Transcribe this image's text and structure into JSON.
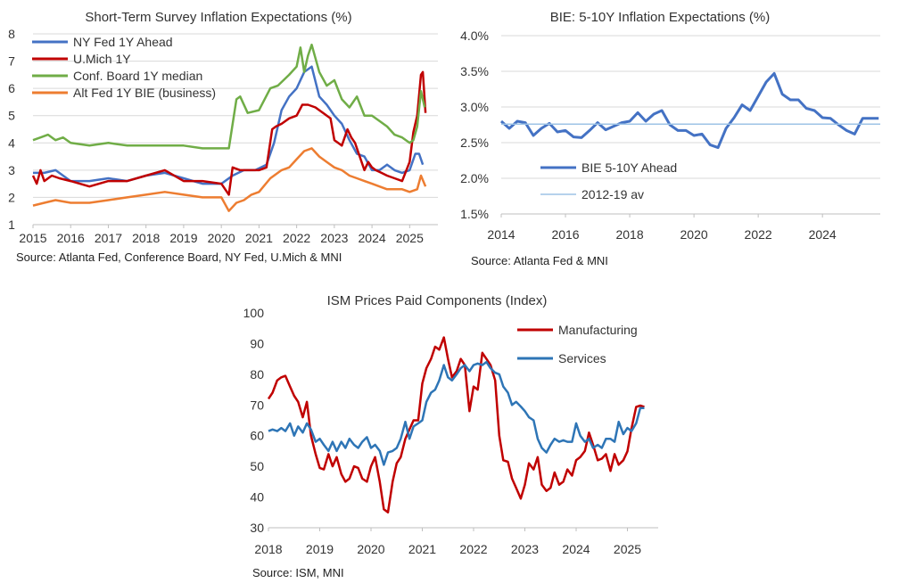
{
  "charts": {
    "colors": {
      "nyfed": "#4472C4",
      "umich": "#C00000",
      "conf": "#70AD47",
      "altfed": "#ED7D31",
      "bie": "#4472C4",
      "bie_avg": "#9DC3E6",
      "mfg": "#C00000",
      "svc": "#2E75B6"
    }
  },
  "chart_data": [
    {
      "type": "line",
      "title": "Short-Term Survey Inflation Expectations (%)",
      "source": "Source: Atlanta Fed, Conference Board, NY Fed, U.Mich & MNI",
      "xlabel": "",
      "ylabel": "",
      "xlim": [
        2015,
        2025.75
      ],
      "ylim": [
        1,
        8
      ],
      "xticks": [
        2015,
        2016,
        2017,
        2018,
        2019,
        2020,
        2021,
        2022,
        2023,
        2024,
        2025
      ],
      "yticks": [
        1,
        2,
        3,
        4,
        5,
        6,
        7,
        8
      ],
      "legend_position": "top-left",
      "series": [
        {
          "name": "NY Fed 1Y Ahead",
          "color_key": "nyfed",
          "x": [
            2015.0,
            2015.3,
            2015.6,
            2016.0,
            2016.5,
            2017.0,
            2017.5,
            2018.0,
            2018.5,
            2019.0,
            2019.5,
            2020.0,
            2020.3,
            2020.6,
            2020.9,
            2021.2,
            2021.4,
            2021.6,
            2021.8,
            2022.0,
            2022.2,
            2022.4,
            2022.6,
            2022.8,
            2023.0,
            2023.2,
            2023.4,
            2023.6,
            2023.8,
            2024.0,
            2024.2,
            2024.4,
            2024.6,
            2024.8,
            2025.0,
            2025.15,
            2025.25,
            2025.35
          ],
          "values": [
            2.9,
            2.9,
            3.0,
            2.6,
            2.6,
            2.7,
            2.6,
            2.8,
            2.9,
            2.7,
            2.5,
            2.5,
            2.8,
            3.0,
            3.0,
            3.2,
            4.0,
            5.2,
            5.7,
            6.0,
            6.6,
            6.8,
            5.7,
            5.4,
            5.0,
            4.7,
            4.1,
            3.6,
            3.5,
            3.0,
            3.0,
            3.2,
            3.0,
            2.9,
            3.0,
            3.6,
            3.6,
            3.2
          ]
        },
        {
          "name": "U.Mich 1Y",
          "color_key": "umich",
          "x": [
            2015.0,
            2015.1,
            2015.2,
            2015.3,
            2015.5,
            2015.7,
            2016.0,
            2016.5,
            2017.0,
            2017.5,
            2018.0,
            2018.5,
            2019.0,
            2019.5,
            2020.0,
            2020.2,
            2020.3,
            2020.5,
            2020.8,
            2021.0,
            2021.2,
            2021.35,
            2021.45,
            2021.6,
            2021.8,
            2022.0,
            2022.15,
            2022.3,
            2022.5,
            2022.6,
            2022.8,
            2022.9,
            2023.0,
            2023.1,
            2023.2,
            2023.35,
            2023.45,
            2023.55,
            2023.7,
            2023.8,
            2023.9,
            2024.0,
            2024.1,
            2024.25,
            2024.4,
            2024.6,
            2024.8,
            2025.0,
            2025.1,
            2025.2,
            2025.3,
            2025.35,
            2025.42
          ],
          "values": [
            2.8,
            2.5,
            3.0,
            2.6,
            2.8,
            2.7,
            2.6,
            2.4,
            2.6,
            2.6,
            2.8,
            3.0,
            2.6,
            2.6,
            2.5,
            2.1,
            3.1,
            3.0,
            3.0,
            3.0,
            3.1,
            4.5,
            4.6,
            4.7,
            4.9,
            5.0,
            5.4,
            5.4,
            5.3,
            5.2,
            5.0,
            4.9,
            4.1,
            4.0,
            3.9,
            4.5,
            4.2,
            4.0,
            3.4,
            3.0,
            3.3,
            3.1,
            3.0,
            2.9,
            2.8,
            2.7,
            2.6,
            3.3,
            4.4,
            5.0,
            6.5,
            6.6,
            5.1
          ]
        },
        {
          "name": "Conf. Board 1Y median",
          "color_key": "conf",
          "x": [
            2015.0,
            2015.2,
            2015.4,
            2015.6,
            2015.8,
            2016.0,
            2016.5,
            2017.0,
            2017.5,
            2018.0,
            2018.5,
            2019.0,
            2019.5,
            2019.8,
            2020.0,
            2020.2,
            2020.4,
            2020.5,
            2020.7,
            2021.0,
            2021.3,
            2021.5,
            2021.8,
            2022.0,
            2022.1,
            2022.2,
            2022.3,
            2022.4,
            2022.6,
            2022.8,
            2023.0,
            2023.2,
            2023.4,
            2023.6,
            2023.8,
            2024.0,
            2024.2,
            2024.4,
            2024.6,
            2024.8,
            2025.0,
            2025.1,
            2025.2,
            2025.3,
            2025.4
          ],
          "values": [
            4.1,
            4.2,
            4.3,
            4.1,
            4.2,
            4.0,
            3.9,
            4.0,
            3.9,
            3.9,
            3.9,
            3.9,
            3.8,
            3.8,
            3.8,
            3.8,
            5.6,
            5.7,
            5.1,
            5.2,
            6.0,
            6.1,
            6.5,
            6.8,
            7.5,
            6.6,
            7.2,
            7.6,
            6.6,
            6.1,
            6.3,
            5.6,
            5.3,
            5.7,
            5.0,
            5.0,
            4.8,
            4.6,
            4.3,
            4.2,
            4.0,
            4.1,
            4.6,
            5.9,
            5.3
          ]
        },
        {
          "name": "Alt Fed 1Y BIE (business)",
          "color_key": "altfed",
          "x": [
            2015.0,
            2015.3,
            2015.6,
            2016.0,
            2016.5,
            2017.0,
            2017.5,
            2018.0,
            2018.5,
            2019.0,
            2019.5,
            2019.8,
            2020.0,
            2020.2,
            2020.4,
            2020.6,
            2020.8,
            2021.0,
            2021.3,
            2021.6,
            2021.8,
            2022.0,
            2022.2,
            2022.4,
            2022.6,
            2022.8,
            2023.0,
            2023.2,
            2023.4,
            2023.6,
            2023.8,
            2024.0,
            2024.2,
            2024.4,
            2024.6,
            2024.8,
            2025.0,
            2025.2,
            2025.3,
            2025.42
          ],
          "values": [
            1.7,
            1.8,
            1.9,
            1.8,
            1.8,
            1.9,
            2.0,
            2.1,
            2.2,
            2.1,
            2.0,
            2.0,
            2.0,
            1.5,
            1.8,
            1.9,
            2.1,
            2.2,
            2.7,
            3.0,
            3.1,
            3.4,
            3.7,
            3.8,
            3.5,
            3.3,
            3.1,
            3.0,
            2.8,
            2.7,
            2.6,
            2.5,
            2.4,
            2.3,
            2.3,
            2.3,
            2.2,
            2.3,
            2.8,
            2.4
          ]
        }
      ]
    },
    {
      "type": "line",
      "title": "BIE: 5-10Y Inflation Expectations (%)",
      "source": "Source: Atlanta Fed & MNI",
      "xlabel": "",
      "ylabel": "",
      "xlim": [
        2014,
        2025.8
      ],
      "ylim": [
        1.5,
        4.0
      ],
      "xticks": [
        2014,
        2016,
        2018,
        2020,
        2022,
        2024
      ],
      "yticks": [
        1.5,
        2.0,
        2.5,
        3.0,
        3.5,
        4.0
      ],
      "yticklabels": [
        "1.5%",
        "2.0%",
        "2.5%",
        "3.0%",
        "3.5%",
        "4.0%"
      ],
      "legend_position": "bottom-left",
      "series": [
        {
          "name": "BIE 5-10Y Ahead",
          "color_key": "bie",
          "x": [
            2014.0,
            2014.25,
            2014.5,
            2014.75,
            2015.0,
            2015.25,
            2015.5,
            2015.75,
            2016.0,
            2016.25,
            2016.5,
            2016.75,
            2017.0,
            2017.25,
            2017.5,
            2017.75,
            2018.0,
            2018.25,
            2018.5,
            2018.75,
            2019.0,
            2019.25,
            2019.5,
            2019.75,
            2020.0,
            2020.25,
            2020.5,
            2020.75,
            2021.0,
            2021.25,
            2021.5,
            2021.75,
            2022.0,
            2022.25,
            2022.5,
            2022.75,
            2023.0,
            2023.25,
            2023.5,
            2023.75,
            2024.0,
            2024.25,
            2024.5,
            2024.75,
            2025.0,
            2025.25,
            2025.5,
            2025.75
          ],
          "values": [
            2.8,
            2.7,
            2.8,
            2.78,
            2.6,
            2.7,
            2.77,
            2.65,
            2.67,
            2.58,
            2.57,
            2.67,
            2.78,
            2.68,
            2.73,
            2.78,
            2.8,
            2.92,
            2.8,
            2.9,
            2.95,
            2.75,
            2.67,
            2.67,
            2.6,
            2.62,
            2.47,
            2.43,
            2.7,
            2.85,
            3.03,
            2.95,
            3.15,
            3.35,
            3.47,
            3.18,
            3.1,
            3.1,
            2.98,
            2.95,
            2.85,
            2.84,
            2.75,
            2.67,
            2.62,
            2.84,
            2.84,
            2.84
          ]
        },
        {
          "name": "2012-19 av",
          "color_key": "bie_avg",
          "x": [
            2014,
            2025.8
          ],
          "values": [
            2.76,
            2.76
          ]
        }
      ]
    },
    {
      "type": "line",
      "title": "ISM Prices Paid Components (Index)",
      "source": "Source: ISM, MNI",
      "xlabel": "",
      "ylabel": "",
      "xlim": [
        2018,
        2025.6
      ],
      "ylim": [
        30,
        100
      ],
      "xticks": [
        2018,
        2019,
        2020,
        2021,
        2022,
        2023,
        2024,
        2025
      ],
      "yticks": [
        30,
        40,
        50,
        60,
        70,
        80,
        90,
        100
      ],
      "legend_position": "top-right",
      "series": [
        {
          "name": "Manufacturing",
          "color_key": "mfg",
          "x": [
            2018.0,
            2018.08,
            2018.17,
            2018.25,
            2018.33,
            2018.42,
            2018.5,
            2018.58,
            2018.67,
            2018.75,
            2018.83,
            2018.92,
            2019.0,
            2019.08,
            2019.17,
            2019.25,
            2019.33,
            2019.42,
            2019.5,
            2019.58,
            2019.67,
            2019.75,
            2019.83,
            2019.92,
            2020.0,
            2020.08,
            2020.17,
            2020.25,
            2020.33,
            2020.42,
            2020.5,
            2020.58,
            2020.67,
            2020.75,
            2020.83,
            2020.92,
            2021.0,
            2021.08,
            2021.17,
            2021.25,
            2021.33,
            2021.42,
            2021.5,
            2021.58,
            2021.67,
            2021.75,
            2021.83,
            2021.92,
            2022.0,
            2022.08,
            2022.17,
            2022.25,
            2022.33,
            2022.42,
            2022.5,
            2022.58,
            2022.67,
            2022.75,
            2022.83,
            2022.92,
            2023.0,
            2023.08,
            2023.17,
            2023.25,
            2023.33,
            2023.42,
            2023.5,
            2023.58,
            2023.67,
            2023.75,
            2023.83,
            2023.92,
            2024.0,
            2024.08,
            2024.17,
            2024.25,
            2024.33,
            2024.42,
            2024.5,
            2024.58,
            2024.67,
            2024.75,
            2024.83,
            2024.92,
            2025.0,
            2025.08,
            2025.17,
            2025.25,
            2025.33
          ],
          "values": [
            72,
            74,
            78,
            79,
            79.5,
            76,
            73,
            71,
            66,
            71,
            60,
            54,
            49.5,
            49,
            54,
            50,
            53,
            47.5,
            45,
            46,
            50,
            49.5,
            46,
            45,
            50,
            53,
            45,
            36,
            35,
            45,
            51,
            53,
            59,
            62,
            65,
            65,
            77,
            82,
            85,
            89,
            88,
            92,
            85,
            79,
            81,
            85,
            83,
            68,
            76,
            75,
            87,
            85,
            83,
            78,
            60,
            52,
            51.5,
            46,
            43,
            39.5,
            44,
            51,
            49,
            53,
            44,
            42,
            43,
            48,
            44,
            45,
            49,
            47,
            52,
            53,
            55,
            61,
            57,
            52,
            52.5,
            54,
            48.5,
            54,
            50.5,
            52,
            54.9,
            62.4,
            69.4,
            69.8,
            69.4
          ]
        },
        {
          "name": "Services",
          "color_key": "svc",
          "x": [
            2018.0,
            2018.08,
            2018.17,
            2018.25,
            2018.33,
            2018.42,
            2018.5,
            2018.58,
            2018.67,
            2018.75,
            2018.83,
            2018.92,
            2019.0,
            2019.08,
            2019.17,
            2019.25,
            2019.33,
            2019.42,
            2019.5,
            2019.58,
            2019.67,
            2019.75,
            2019.83,
            2019.92,
            2020.0,
            2020.08,
            2020.17,
            2020.25,
            2020.33,
            2020.42,
            2020.5,
            2020.58,
            2020.67,
            2020.75,
            2020.83,
            2020.92,
            2021.0,
            2021.08,
            2021.17,
            2021.25,
            2021.33,
            2021.42,
            2021.5,
            2021.58,
            2021.67,
            2021.75,
            2021.83,
            2021.92,
            2022.0,
            2022.08,
            2022.17,
            2022.25,
            2022.33,
            2022.42,
            2022.5,
            2022.58,
            2022.67,
            2022.75,
            2022.83,
            2022.92,
            2023.0,
            2023.08,
            2023.17,
            2023.25,
            2023.33,
            2023.42,
            2023.5,
            2023.58,
            2023.67,
            2023.75,
            2023.83,
            2023.92,
            2024.0,
            2024.08,
            2024.17,
            2024.25,
            2024.33,
            2024.42,
            2024.5,
            2024.58,
            2024.67,
            2024.75,
            2024.83,
            2024.92,
            2025.0,
            2025.08,
            2025.17,
            2025.25,
            2025.33
          ],
          "values": [
            61.5,
            62,
            61.5,
            62.5,
            61.5,
            64,
            60,
            63,
            61,
            64,
            62,
            58,
            59,
            57,
            55,
            58,
            55,
            58,
            56,
            59,
            57,
            56,
            58,
            59.5,
            56,
            57,
            55,
            50.5,
            54.5,
            55,
            56,
            59,
            64.5,
            59,
            63,
            64,
            65,
            71,
            74,
            75,
            78,
            83,
            79,
            78,
            80,
            82,
            83,
            81,
            83,
            83.5,
            83,
            84,
            82,
            80.5,
            80,
            76,
            74,
            70,
            71,
            69.5,
            68,
            66,
            65,
            59,
            56,
            54.5,
            57,
            59,
            58,
            58.5,
            58,
            58,
            64,
            60,
            58,
            59,
            56,
            57,
            56,
            59,
            59,
            58,
            64.5,
            60.5,
            62.5,
            61.5,
            64,
            69,
            69
          ]
        }
      ]
    }
  ]
}
